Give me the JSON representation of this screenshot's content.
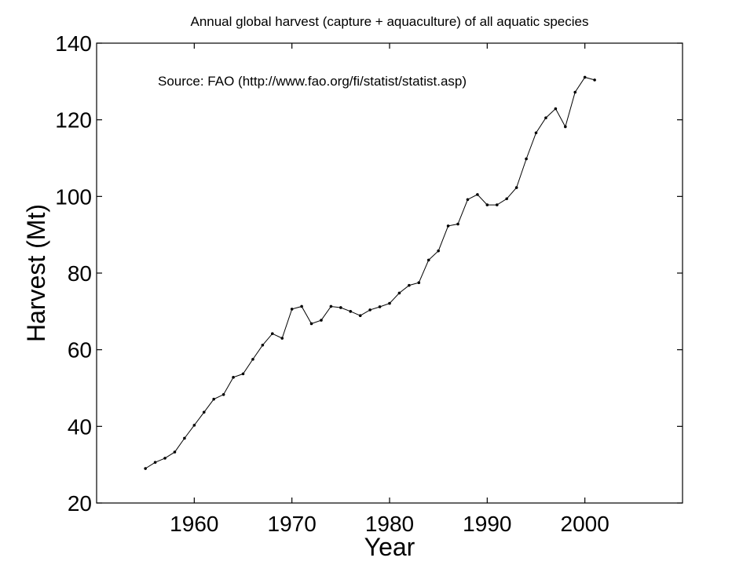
{
  "chart_data": {
    "type": "line",
    "title": "Annual global harvest (capture + aquaculture) of all aquatic species",
    "annotation": "Source:  FAO (http://www.fao.org/fi/statist/statist.asp)",
    "xlabel": "Year",
    "ylabel": "Harvest (Mt)",
    "xlim": [
      1950,
      2010
    ],
    "ylim": [
      20,
      140
    ],
    "xticks": [
      1960,
      1970,
      1980,
      1990,
      2000
    ],
    "yticks": [
      20,
      40,
      60,
      80,
      100,
      120,
      140
    ],
    "grid": false,
    "marker": "dot",
    "series": [
      {
        "x": [
          1955,
          1956,
          1957,
          1958,
          1959,
          1960,
          1961,
          1962,
          1963,
          1964,
          1965,
          1966,
          1967,
          1968,
          1969,
          1970,
          1971,
          1972,
          1973,
          1974,
          1975,
          1976,
          1977,
          1978,
          1979,
          1980,
          1981,
          1982,
          1983,
          1984,
          1985,
          1986,
          1987,
          1988,
          1989,
          1990,
          1991,
          1992,
          1993,
          1994,
          1995,
          1996,
          1997,
          1998,
          1999,
          2000,
          2001
        ],
        "values": [
          29.0,
          30.6,
          31.7,
          33.3,
          36.9,
          40.3,
          43.7,
          47.1,
          48.3,
          52.8,
          53.7,
          57.5,
          61.2,
          64.2,
          63.0,
          70.6,
          71.3,
          66.8,
          67.7,
          71.3,
          71.0,
          70.0,
          68.9,
          70.4,
          71.2,
          72.1,
          74.8,
          76.8,
          77.5,
          83.4,
          85.8,
          92.3,
          92.8,
          99.2,
          100.5,
          97.8,
          97.8,
          99.4,
          102.3,
          109.8,
          116.6,
          120.5,
          122.9,
          118.2,
          127.2,
          131.1,
          130.4
        ]
      }
    ]
  }
}
